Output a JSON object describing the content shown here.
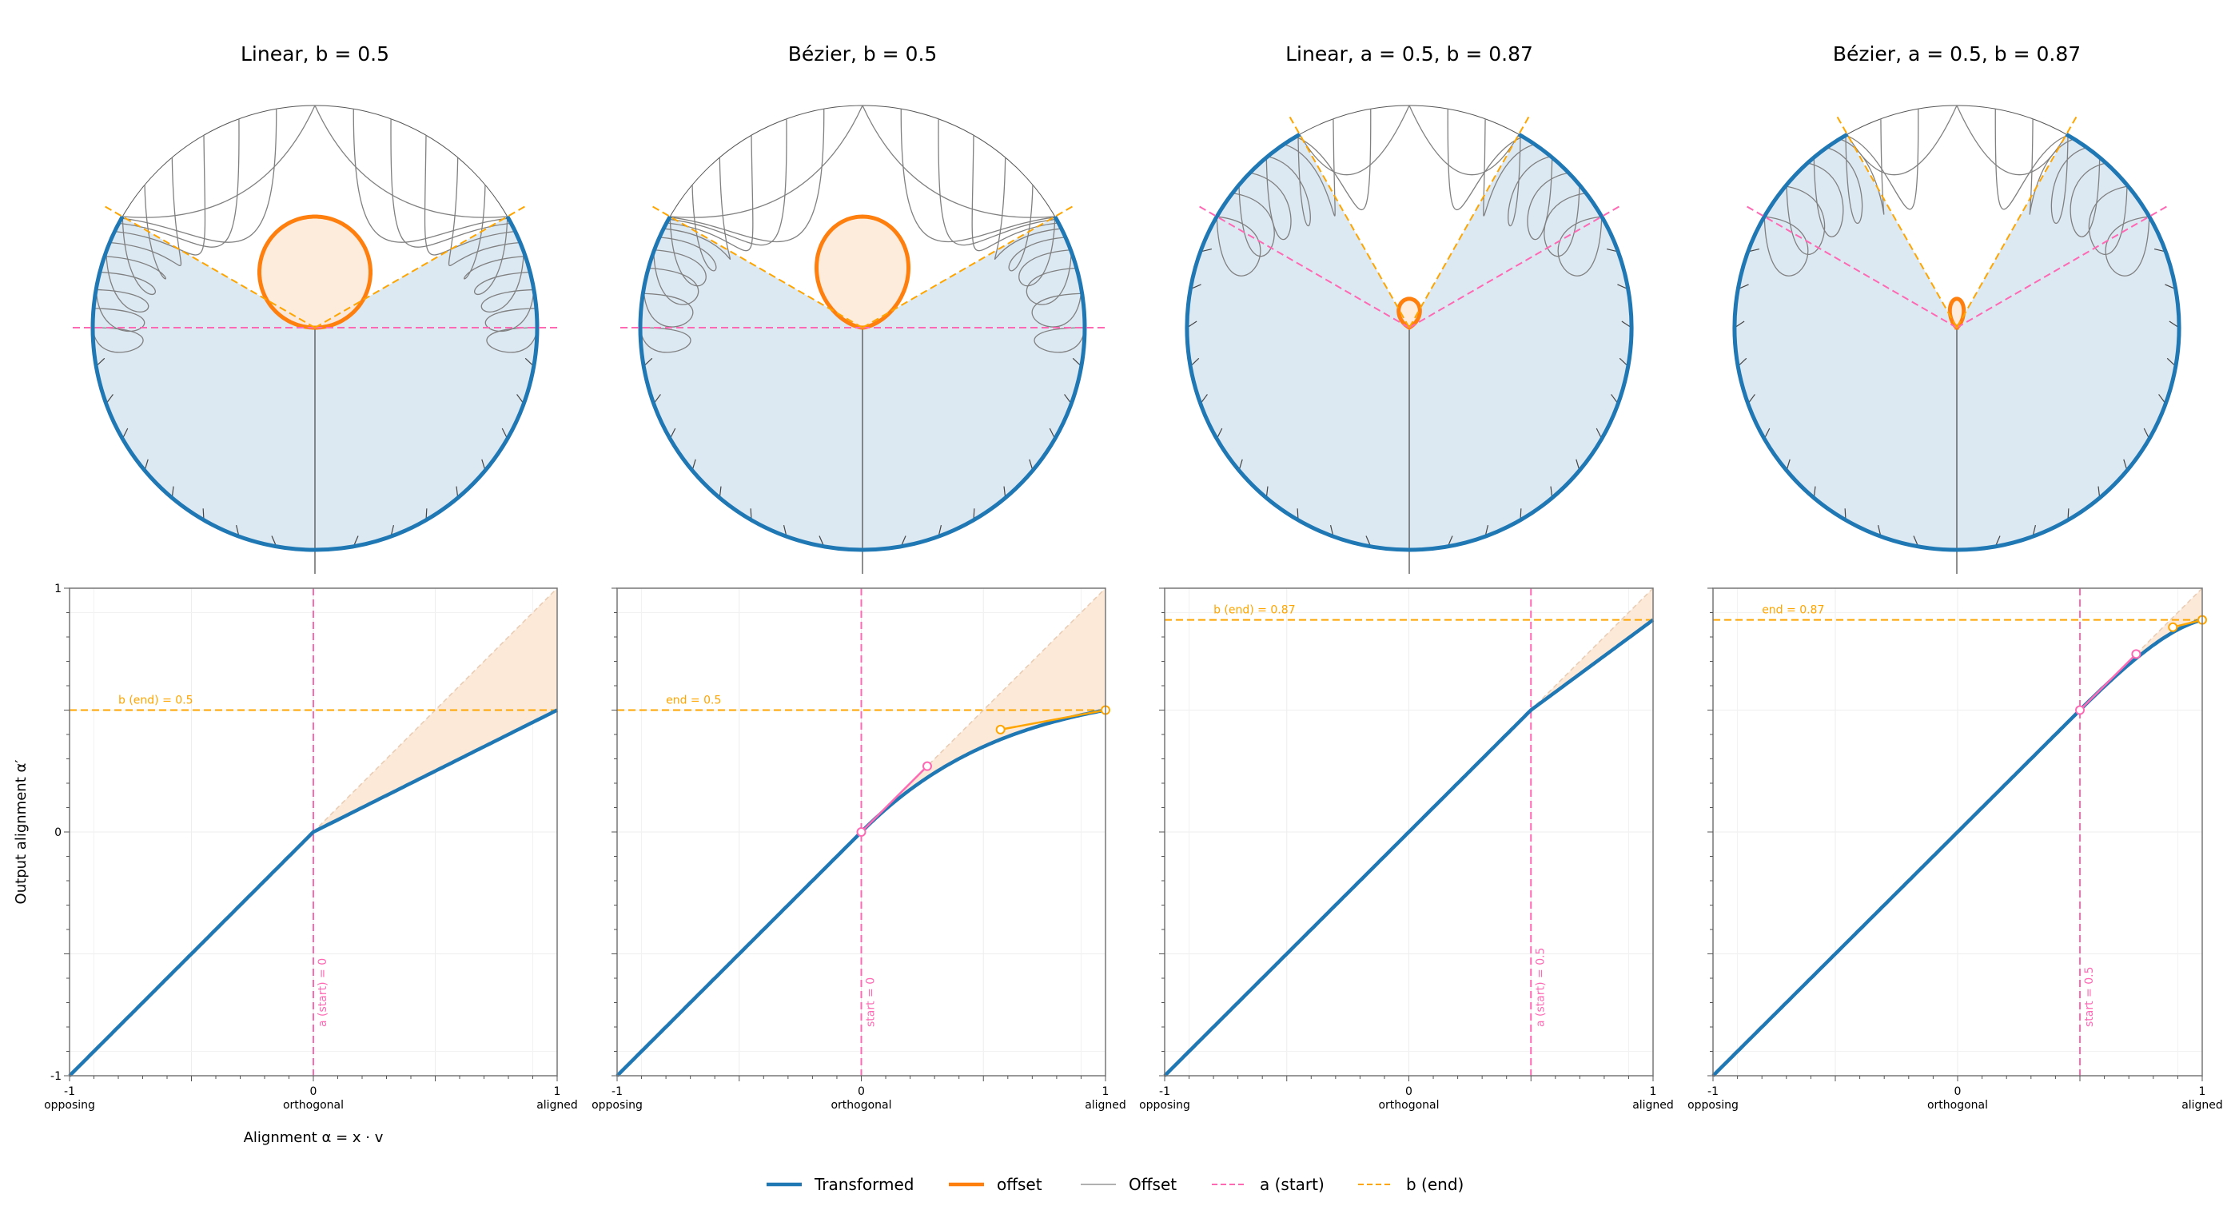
{
  "legend": [
    {
      "label": "Transformed",
      "color": "#1f77b4",
      "style": "solid-thick"
    },
    {
      "label": "offset",
      "color": "#ff7f0e",
      "style": "solid-thick"
    },
    {
      "label": "Offset",
      "color": "#808080",
      "style": "solid-thin"
    },
    {
      "label": "a (start)",
      "color": "#ff69b4",
      "style": "dashed"
    },
    {
      "label": "b (end)",
      "color": "#ffa500",
      "style": "dashed"
    }
  ],
  "colors": {
    "transformed": "#1f77b4",
    "offset": "#ff7f0e",
    "offset_fill": "#fde9d8",
    "region_fill": "#dce9f3",
    "start": "#ff69b4",
    "end": "#ffa500",
    "guide": "#808080"
  },
  "chart_data": [
    {
      "type": "line",
      "title": "Linear, b = 0.5",
      "method": "linear",
      "a": 0,
      "b": 0.5,
      "xlabel": "Alignment α = x · v",
      "ylabel": "Output alignment α′",
      "xlim": [
        -1,
        1
      ],
      "ylim": [
        -1,
        1
      ],
      "xticks": [
        {
          "value": -1,
          "label": "-1",
          "sublabel": "opposing"
        },
        {
          "value": 0,
          "label": "0",
          "sublabel": "orthogonal"
        },
        {
          "value": 1,
          "label": "1",
          "sublabel": "aligned"
        }
      ],
      "yticks": [
        {
          "value": -1,
          "label": "-1"
        },
        {
          "value": 0,
          "label": "0"
        },
        {
          "value": 1,
          "label": "1"
        }
      ],
      "end_label": "b (end) = 0.5",
      "start_label": "a (start) = 0"
    },
    {
      "type": "line",
      "title": "Bézier, b = 0.5",
      "method": "bezier",
      "a": 0,
      "b": 0.5,
      "control_points": [
        [
          0,
          0
        ],
        [
          0.27,
          0.27
        ],
        [
          0.57,
          0.42
        ],
        [
          1,
          0.5
        ]
      ],
      "xlim": [
        -1,
        1
      ],
      "ylim": [
        -1,
        1
      ],
      "xticks": [
        {
          "value": -1,
          "label": "-1",
          "sublabel": "opposing"
        },
        {
          "value": 0,
          "label": "0",
          "sublabel": "orthogonal"
        },
        {
          "value": 1,
          "label": "1",
          "sublabel": "aligned"
        }
      ],
      "end_label": "end = 0.5",
      "start_label": "start = 0"
    },
    {
      "type": "line",
      "title": "Linear, a = 0.5, b = 0.87",
      "method": "linear",
      "a": 0.5,
      "b": 0.87,
      "xlim": [
        -1,
        1
      ],
      "ylim": [
        -1,
        1
      ],
      "xticks": [
        {
          "value": -1,
          "label": "-1",
          "sublabel": "opposing"
        },
        {
          "value": 0,
          "label": "0",
          "sublabel": "orthogonal"
        },
        {
          "value": 1,
          "label": "1",
          "sublabel": "aligned"
        }
      ],
      "end_label": "b (end) = 0.87",
      "start_label": "a (start) = 0.5"
    },
    {
      "type": "line",
      "title": "Bézier, a = 0.5, b = 0.87",
      "method": "bezier",
      "a": 0.5,
      "b": 0.87,
      "control_points": [
        [
          0.5,
          0.5
        ],
        [
          0.73,
          0.73
        ],
        [
          0.88,
          0.84
        ],
        [
          1,
          0.87
        ]
      ],
      "xlim": [
        -1,
        1
      ],
      "ylim": [
        -1,
        1
      ],
      "xticks": [
        {
          "value": -1,
          "label": "-1",
          "sublabel": "opposing"
        },
        {
          "value": 0,
          "label": "0",
          "sublabel": "orthogonal"
        },
        {
          "value": 1,
          "label": "1",
          "sublabel": "aligned"
        }
      ],
      "end_label": "end = 0.87",
      "start_label": "start = 0.5"
    }
  ]
}
